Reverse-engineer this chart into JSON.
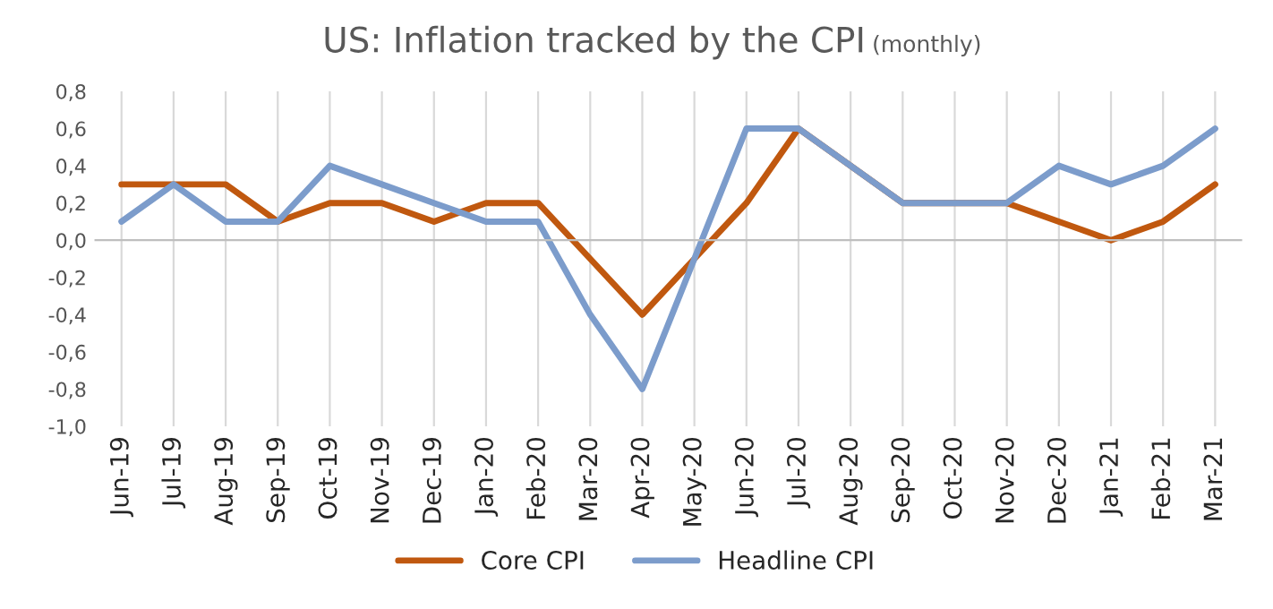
{
  "chart_data": {
    "type": "line",
    "title": "US: Inflation tracked by the CPI",
    "subtitle": "(monthly)",
    "categories": [
      "Jun-19",
      "Jul-19",
      "Aug-19",
      "Sep-19",
      "Oct-19",
      "Nov-19",
      "Dec-19",
      "Jan-20",
      "Feb-20",
      "Mar-20",
      "Apr-20",
      "May-20",
      "Jun-20",
      "Jul-20",
      "Aug-20",
      "Sep-20",
      "Oct-20",
      "Nov-20",
      "Dec-20",
      "Jan-21",
      "Feb-21",
      "Mar-21"
    ],
    "series": [
      {
        "name": "Core CPI",
        "color": "#c0580f",
        "values": [
          0.3,
          0.3,
          0.3,
          0.1,
          0.2,
          0.2,
          0.1,
          0.2,
          0.2,
          -0.1,
          -0.4,
          -0.1,
          0.2,
          0.6,
          0.4,
          0.2,
          0.2,
          0.2,
          0.1,
          0.0,
          0.1,
          0.3
        ]
      },
      {
        "name": "Headline CPI",
        "color": "#7c9ccb",
        "values": [
          0.1,
          0.3,
          0.1,
          0.1,
          0.4,
          0.3,
          0.2,
          0.1,
          0.1,
          -0.4,
          -0.8,
          -0.1,
          0.6,
          0.6,
          0.4,
          0.2,
          0.2,
          0.2,
          0.4,
          0.3,
          0.4,
          0.6
        ]
      }
    ],
    "ylim": [
      -1.0,
      0.8
    ],
    "yticks": [
      {
        "value": -1.0,
        "label": "-1,0"
      },
      {
        "value": -0.8,
        "label": "-0,8"
      },
      {
        "value": -0.6,
        "label": "-0,6"
      },
      {
        "value": -0.4,
        "label": "-0,4"
      },
      {
        "value": -0.2,
        "label": "-0,2"
      },
      {
        "value": 0.0,
        "label": "0,0"
      },
      {
        "value": 0.2,
        "label": "0,2"
      },
      {
        "value": 0.4,
        "label": "0,4"
      },
      {
        "value": 0.6,
        "label": "0,6"
      },
      {
        "value": 0.8,
        "label": "0,8"
      }
    ],
    "grid": "x",
    "legend": "bottom",
    "marker": "none",
    "line_style": "solid"
  }
}
